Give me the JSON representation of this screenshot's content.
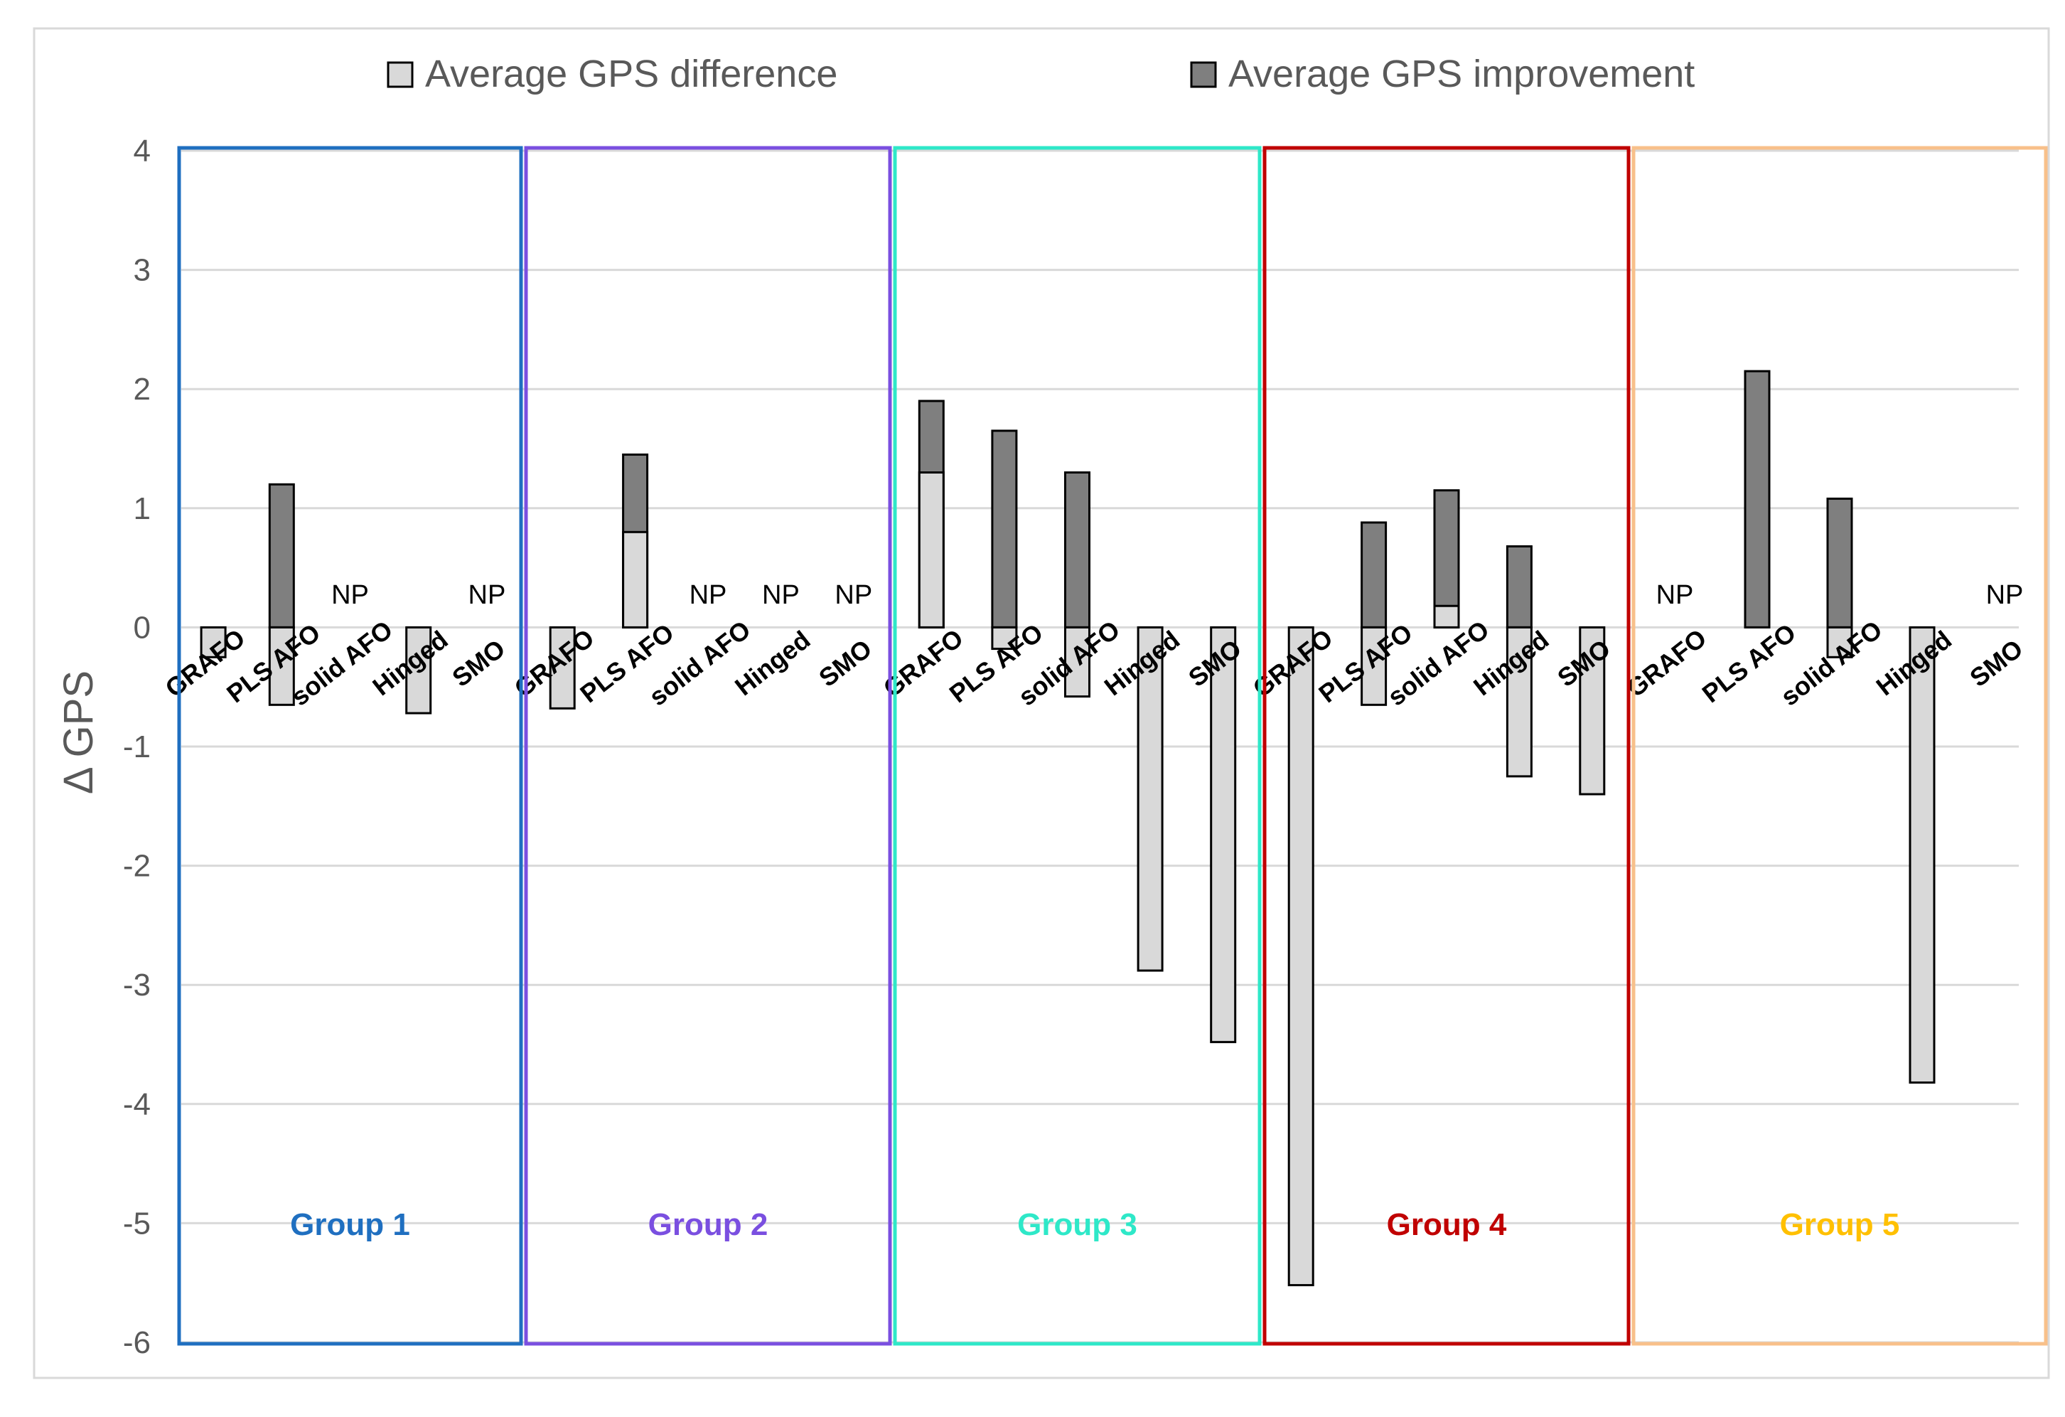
{
  "chart_data": {
    "type": "bar",
    "title": "",
    "xlabel": "",
    "ylabel": "Δ GPS",
    "ylim": [
      -6,
      4
    ],
    "yticks": [
      4,
      3,
      2,
      1,
      0,
      -1,
      -2,
      -3,
      -4,
      -5,
      -6
    ],
    "grid": true,
    "legend_position": "top",
    "categories": [
      "GRAFO",
      "PLS AFO",
      "solid AFO",
      "Hinged",
      "SMO"
    ],
    "series": [
      {
        "name": "Average GPS difference",
        "color": "#d9d9d9"
      },
      {
        "name": "Average GPS improvement",
        "color": "#7f7f7f"
      }
    ],
    "not_present_label": "NP",
    "groups": [
      {
        "name": "Group 1",
        "color": "#1f6fc0",
        "border_color": "#1f6fc0",
        "difference": [
          -0.25,
          -0.65,
          null,
          -0.72,
          null
        ],
        "improvement": [
          0,
          1.2,
          null,
          0,
          null
        ],
        "np": [
          false,
          false,
          true,
          false,
          true
        ]
      },
      {
        "name": "Group 2",
        "color": "#7a4fe0",
        "border_color": "#7a4fe0",
        "difference": [
          -0.68,
          0.8,
          null,
          null,
          null
        ],
        "improvement": [
          0,
          1.45,
          null,
          null,
          null
        ],
        "np": [
          false,
          false,
          true,
          true,
          true
        ]
      },
      {
        "name": "Group 3",
        "color": "#2ee8c8",
        "border_color": "#2ee8c8",
        "difference": [
          1.3,
          -0.18,
          -0.58,
          -2.88,
          -3.48
        ],
        "improvement": [
          1.9,
          1.65,
          1.3,
          0,
          0
        ],
        "np": [
          false,
          false,
          false,
          false,
          false
        ]
      },
      {
        "name": "Group 4",
        "color": "#c00000",
        "border_color": "#c00000",
        "difference": [
          -5.52,
          -0.65,
          0.18,
          -1.25,
          -1.4
        ],
        "improvement": [
          0,
          0.88,
          1.15,
          0.68,
          0
        ],
        "np": [
          false,
          false,
          false,
          false,
          false
        ]
      },
      {
        "name": "Group 5",
        "color": "#ffc000",
        "border_color": "#f8c08a",
        "difference": [
          null,
          0,
          -0.25,
          -3.82,
          null
        ],
        "improvement": [
          null,
          2.15,
          1.08,
          0,
          null
        ],
        "np": [
          true,
          false,
          false,
          false,
          true
        ]
      }
    ]
  }
}
